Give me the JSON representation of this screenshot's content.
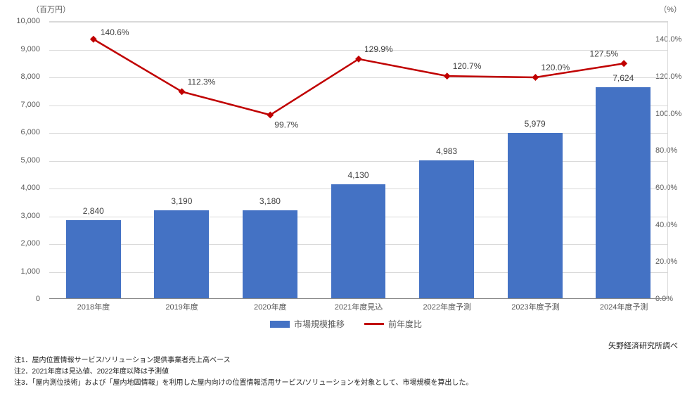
{
  "chart": {
    "type": "bar+line",
    "left_axis_title": "（百万円）",
    "right_axis_title": "（%）",
    "categories": [
      "2018年度",
      "2019年度",
      "2020年度",
      "2021年度見込",
      "2022年度予測",
      "2023年度予測",
      "2024年度予測"
    ],
    "bar_values": [
      2840,
      3190,
      3180,
      4130,
      4983,
      5979,
      7624
    ],
    "bar_labels": [
      "2,840",
      "3,190",
      "3,180",
      "4,130",
      "4,983",
      "5,979",
      "7,624"
    ],
    "bar_color": "#4472c4",
    "line_values": [
      140.6,
      112.3,
      99.7,
      129.9,
      120.7,
      120.0,
      127.5
    ],
    "line_labels": [
      "140.6%",
      "112.3%",
      "99.7%",
      "129.9%",
      "120.7%",
      "120.0%",
      "127.5%"
    ],
    "line_color": "#c00000",
    "line_marker": "diamond",
    "line_width": 2.5,
    "left_ylim": [
      0,
      10000
    ],
    "left_ytick_step": 1000,
    "left_tick_labels": [
      "0",
      "1,000",
      "2,000",
      "3,000",
      "4,000",
      "5,000",
      "6,000",
      "7,000",
      "8,000",
      "9,000",
      "10,000"
    ],
    "right_ylim": [
      0,
      150
    ],
    "right_ytick_step": 20,
    "right_tick_labels": [
      "0.0%",
      "20.0%",
      "40.0%",
      "60.0%",
      "80.0%",
      "100.0%",
      "120.0%",
      "140.0%"
    ],
    "background_color": "#ffffff",
    "grid_color": "#d9d9d9",
    "text_color": "#595959",
    "label_fontsize": 12,
    "axis_fontsize": 11
  },
  "legend": {
    "bar_label": "市場規模推移",
    "line_label": "前年度比"
  },
  "attribution": "矢野経済研究所調べ",
  "notes": [
    "注1．屋内位置情報サービス/ソリューション提供事業者売上高ベース",
    "注2．2021年度は見込値、2022年度以降は予測値",
    "注3．「屋内測位技術」および「屋内地図情報」を利用した屋内向けの位置情報活用サービス/ソリューションを対象として、市場規模を算出した。"
  ]
}
